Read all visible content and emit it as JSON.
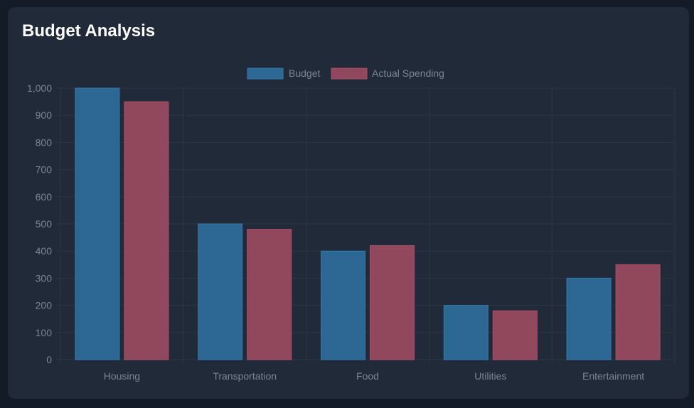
{
  "header": {
    "title": "Budget Analysis"
  },
  "colors": {
    "page_background": "#131b29",
    "card_background": "#212a39",
    "grid": "#2c3544",
    "axis_text": "#7b8594",
    "budget_fill": "#2d6895",
    "budget_stroke": "#3279ad",
    "actual_fill": "#91485c",
    "actual_stroke": "#a8506a"
  },
  "chart_data": {
    "type": "bar",
    "title": "",
    "xlabel": "",
    "ylabel": "",
    "categories": [
      "Housing",
      "Transportation",
      "Food",
      "Utilities",
      "Entertainment"
    ],
    "series": [
      {
        "name": "Budget",
        "values": [
          1000,
          500,
          400,
          200,
          300
        ],
        "color": "#2d6895"
      },
      {
        "name": "Actual Spending",
        "values": [
          950,
          480,
          420,
          180,
          350
        ],
        "color": "#91485c"
      }
    ],
    "ylim": [
      0,
      1000
    ],
    "yticks": [
      "0",
      "100",
      "200",
      "300",
      "400",
      "500",
      "600",
      "700",
      "800",
      "900",
      "1,000"
    ],
    "grid": true,
    "legend_position": "top-center"
  }
}
